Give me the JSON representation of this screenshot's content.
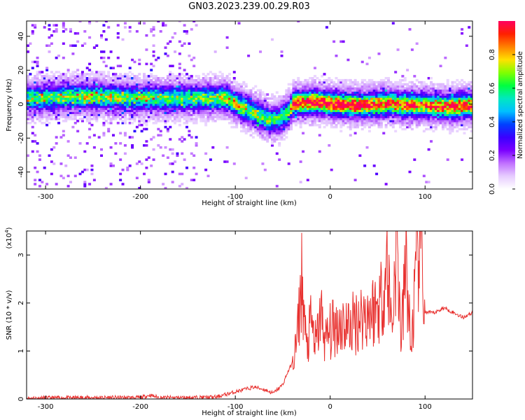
{
  "title": "GN03.2023.239.00.29.R03",
  "colors": {
    "snr_line": "#e8302e",
    "axis": "#000000",
    "colormap": [
      "#ffffff",
      "#e6ccff",
      "#c070ff",
      "#7a00ff",
      "#3a00ff",
      "#0040ff",
      "#00c0ff",
      "#00e8c0",
      "#00ff40",
      "#80ff00",
      "#ffe000",
      "#ff8000",
      "#ff2000",
      "#ff0060"
    ]
  },
  "chart_data": [
    {
      "type": "heatmap",
      "xlabel": "Height of straight line (km)",
      "ylabel": "Frequency (Hz)",
      "xlim": [
        -320,
        150
      ],
      "ylim": [
        -50,
        49
      ],
      "x_ticks": [
        -300,
        -200,
        -100,
        0,
        100
      ],
      "y_ticks": [
        -40,
        -20,
        0,
        20,
        40
      ],
      "grid": false,
      "colorbar": {
        "label": "Normalized spectral amplitude",
        "range": [
          0,
          1
        ],
        "ticks": [
          "0.0",
          "0.2",
          "0.4",
          "0.6",
          "0.8"
        ]
      },
      "ridge_line": {
        "x": [
          -320,
          -280,
          -250,
          -200,
          -150,
          -130,
          -110,
          -95,
          -80,
          -65,
          -55,
          -45,
          -40,
          -20,
          0,
          20,
          40,
          60,
          80,
          100,
          120,
          150
        ],
        "y": [
          3,
          4,
          4,
          3,
          3,
          3,
          3,
          -2,
          -6,
          -10,
          -9,
          -5,
          0,
          1,
          0,
          -1,
          -1,
          0,
          -1,
          -1,
          -2,
          -1
        ],
        "amplitude": [
          0.45,
          0.5,
          0.55,
          0.5,
          0.45,
          0.5,
          0.6,
          0.6,
          0.55,
          0.5,
          0.45,
          0.55,
          0.85,
          0.9,
          0.95,
          0.9,
          0.85,
          0.8,
          0.8,
          0.75,
          0.85,
          0.85
        ]
      }
    },
    {
      "type": "line",
      "xlabel": "Height of straight line (km)",
      "ylabel": "SNR (10 * v/v)",
      "y_multiplier": "(x10",
      "y_multiplier_exp": "4",
      "y_multiplier_close": ")",
      "xlim": [
        -320,
        150
      ],
      "ylim": [
        0,
        3.5
      ],
      "x_ticks": [
        -300,
        -200,
        -100,
        0,
        100
      ],
      "y_ticks": [
        0,
        1,
        2,
        3
      ],
      "grid": false,
      "series": [
        {
          "x": [
            -320,
            -250,
            -200,
            -190,
            -180,
            -150,
            -120,
            -100,
            -90,
            -80,
            -70,
            -60,
            -50,
            -45,
            -40,
            -35,
            -30,
            -25,
            -20,
            -15,
            -10,
            -5,
            0,
            10,
            20,
            30,
            40,
            50,
            55,
            60,
            65,
            70,
            75,
            80,
            85,
            90,
            95,
            100,
            105,
            110,
            120,
            130,
            140,
            150
          ],
          "y": [
            0.02,
            0.03,
            0.03,
            0.08,
            0.03,
            0.03,
            0.04,
            0.15,
            0.2,
            0.25,
            0.2,
            0.12,
            0.3,
            0.55,
            0.75,
            1.2,
            2.5,
            1.0,
            1.6,
            1.1,
            1.8,
            1.2,
            1.4,
            1.6,
            1.5,
            1.7,
            1.8,
            1.9,
            2.2,
            2.8,
            1.5,
            3.3,
            1.2,
            2.9,
            1.0,
            2.4,
            3.4,
            1.8,
            1.8,
            1.8,
            1.9,
            1.8,
            1.7,
            1.8
          ]
        }
      ]
    }
  ]
}
